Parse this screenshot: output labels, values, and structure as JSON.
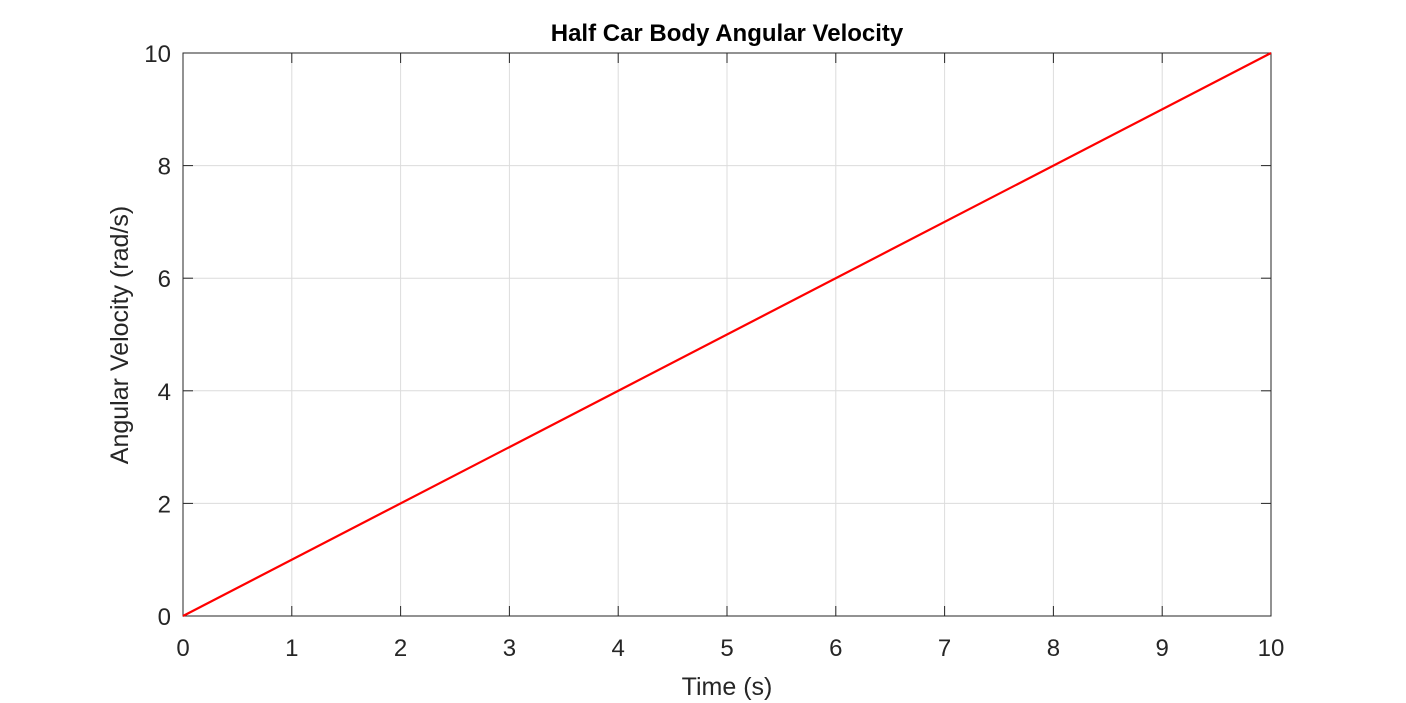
{
  "chart_data": {
    "type": "line",
    "title": "Half Car Body Angular Velocity",
    "xlabel": "Time (s)",
    "ylabel": "Angular Velocity (rad/s)",
    "xlim": [
      0,
      10
    ],
    "ylim": [
      0,
      10
    ],
    "xticks": [
      0,
      1,
      2,
      3,
      4,
      5,
      6,
      7,
      8,
      9,
      10
    ],
    "yticks": [
      0,
      2,
      4,
      6,
      8,
      10
    ],
    "grid": true,
    "series": [
      {
        "color": "#ff0000",
        "x": [
          0,
          10
        ],
        "y": [
          0,
          10
        ]
      }
    ]
  }
}
